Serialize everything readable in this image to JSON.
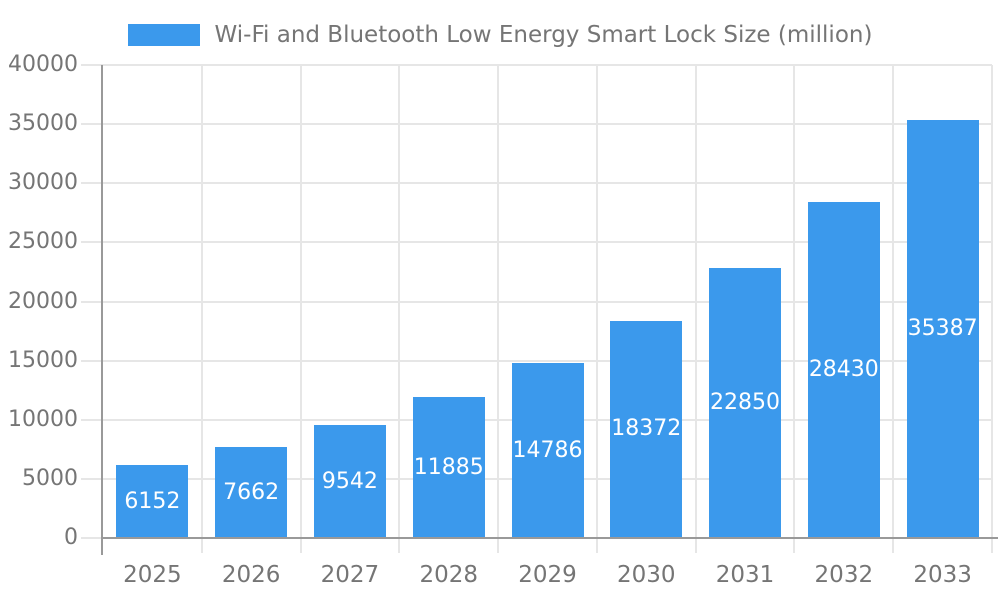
{
  "legend": {
    "label": "Wi-Fi and Bluetooth Low Energy Smart Lock Size (million)",
    "swatch_color": "#3b99ec"
  },
  "chart_data": {
    "type": "bar",
    "title": "Wi-Fi and Bluetooth Low Energy Smart Lock Size (million)",
    "categories": [
      "2025",
      "2026",
      "2027",
      "2028",
      "2029",
      "2030",
      "2031",
      "2032",
      "2033"
    ],
    "series": [
      {
        "name": "Wi-Fi and Bluetooth Low Energy Smart Lock Size (million)",
        "values": [
          6152,
          7662,
          9542,
          11885,
          14786,
          18372,
          22850,
          28430,
          35387
        ]
      }
    ],
    "value_labels_visible": true,
    "value_label_position": "inside-center",
    "xlabel": "",
    "ylabel": "",
    "ylim": [
      0,
      40000
    ],
    "yticks": [
      0,
      5000,
      10000,
      15000,
      20000,
      25000,
      30000,
      35000,
      40000
    ],
    "grid": true,
    "legend_position": "top-center",
    "colors": {
      "bar": "#3b99ec",
      "bar_label": "#ffffff",
      "axis_line": "#999999",
      "grid_line": "#e6e6e6",
      "tick_label": "#757575"
    }
  }
}
